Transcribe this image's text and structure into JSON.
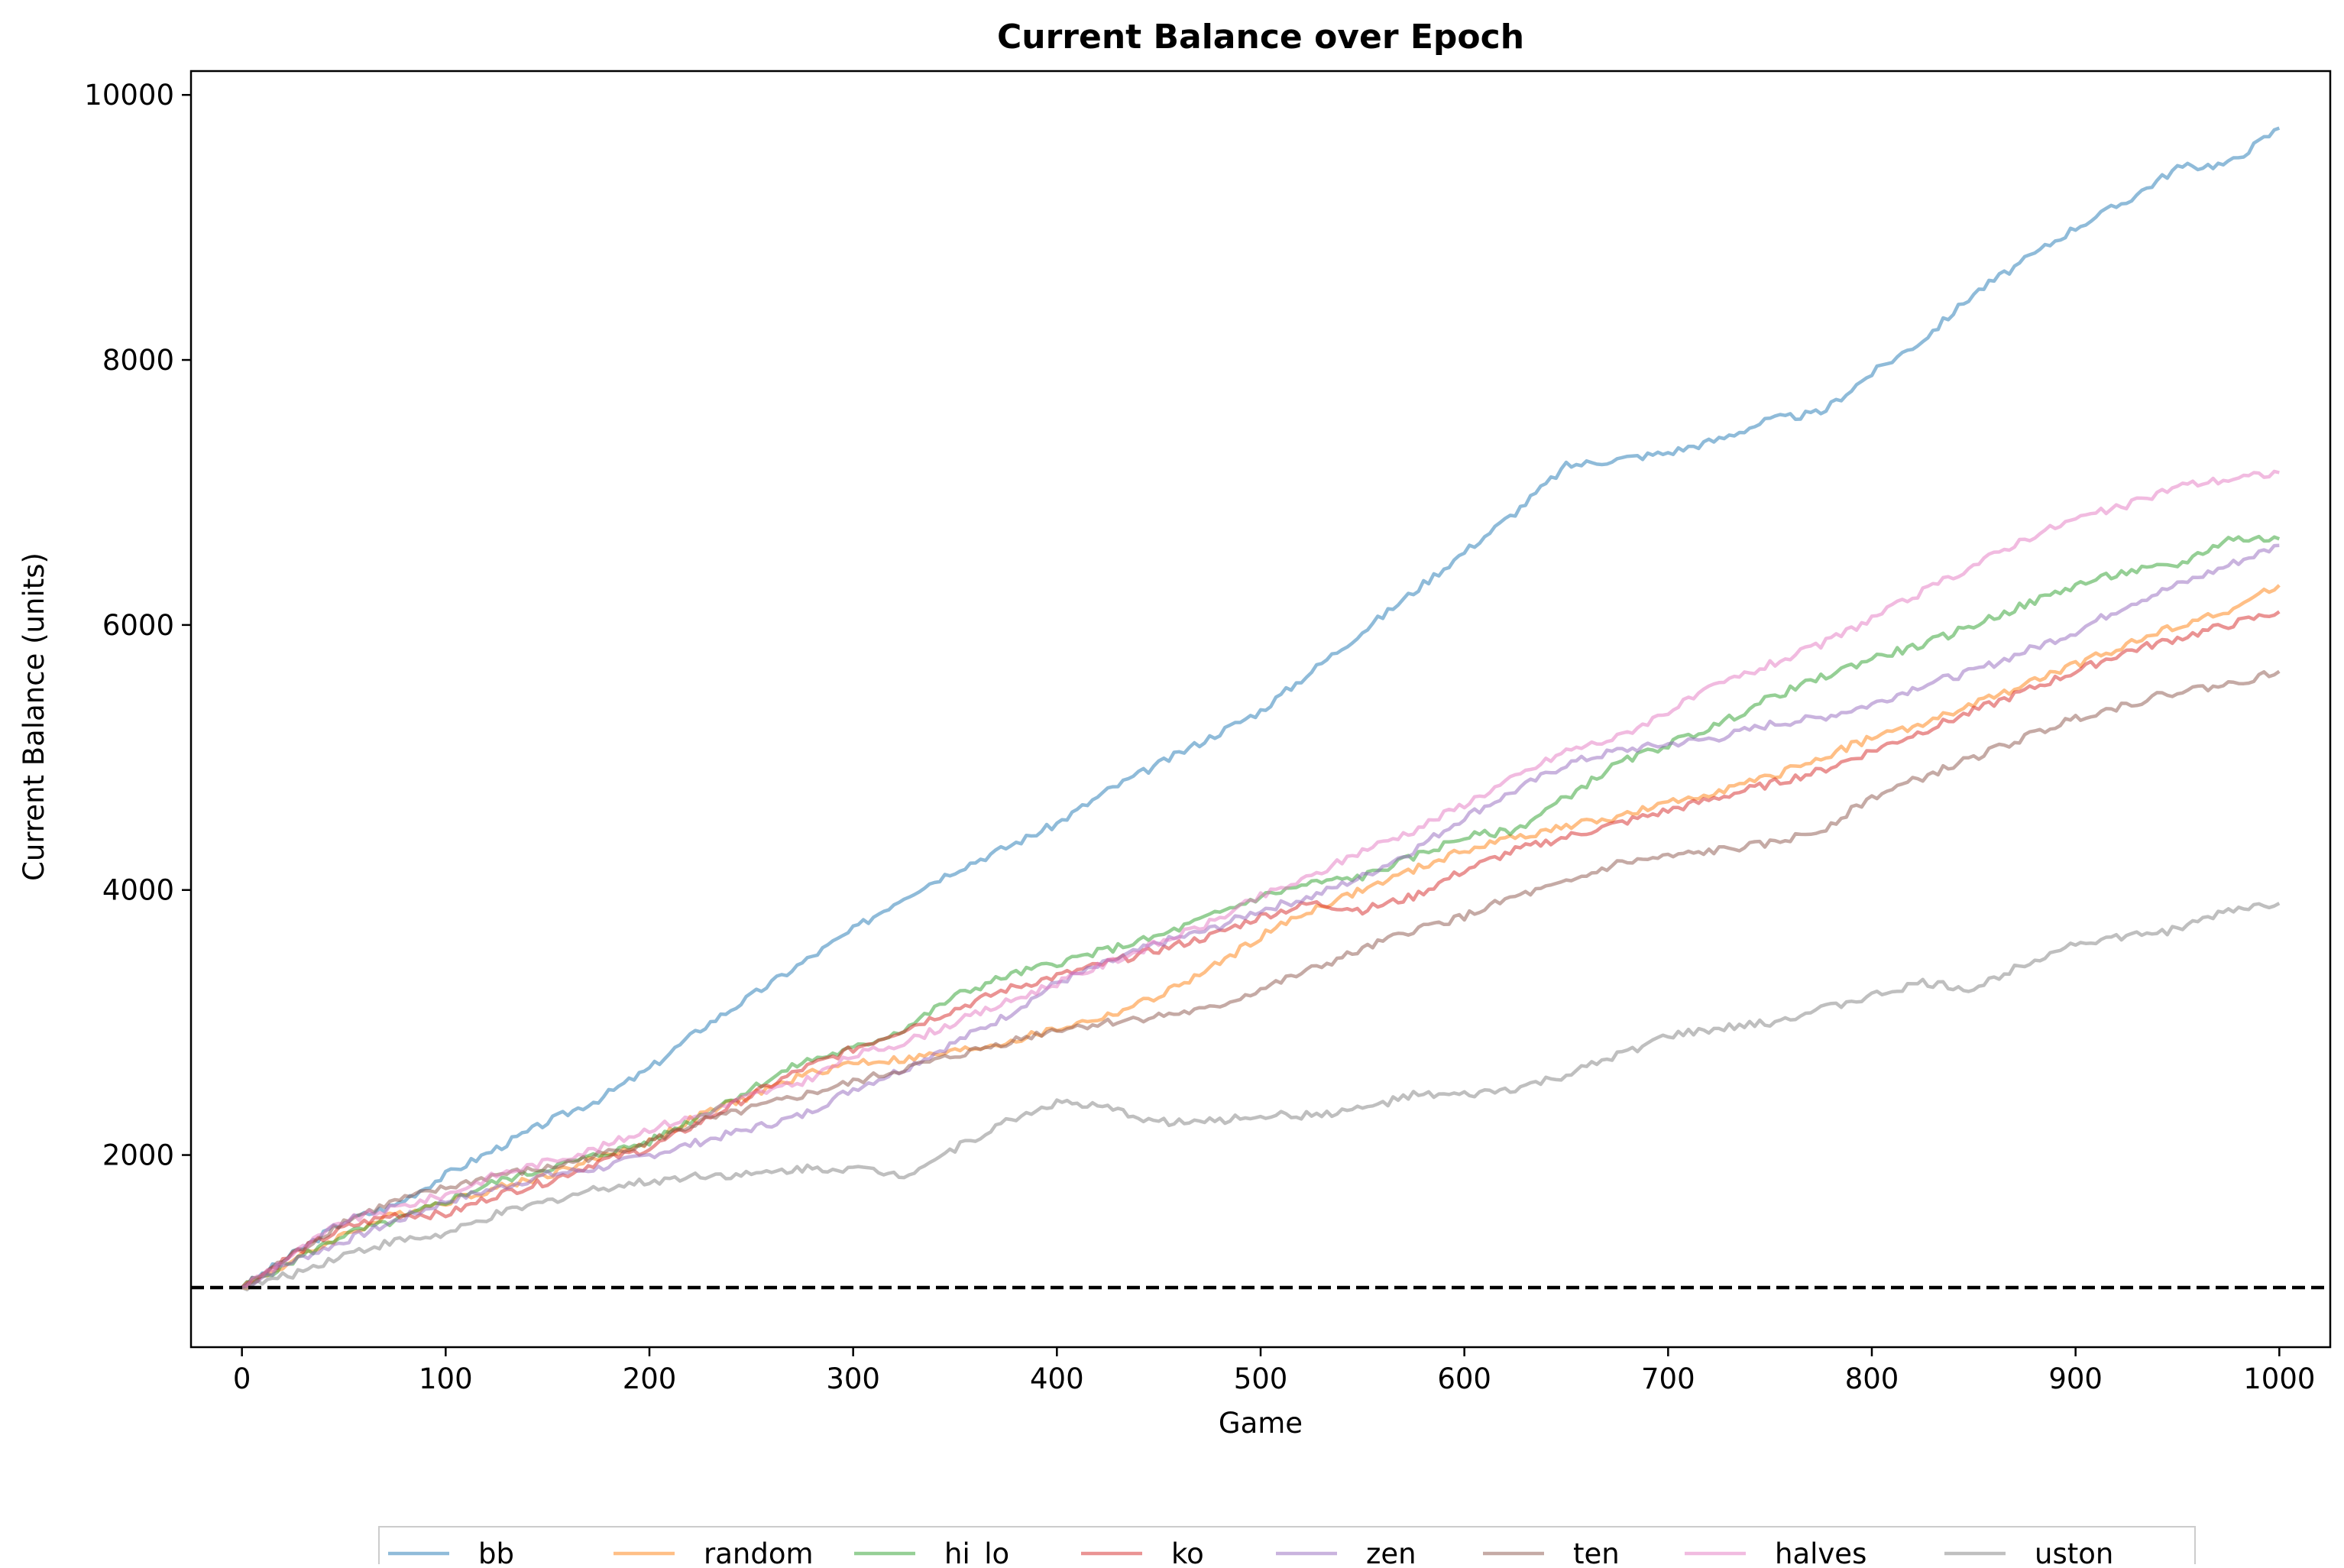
{
  "chart_data": {
    "type": "line",
    "title": "Current Balance over Epoch",
    "xlabel": "Game",
    "ylabel": "Current Balance (units)",
    "xlim": [
      -25,
      1025
    ],
    "ylim": [
      550,
      10180
    ],
    "xticks": [
      0,
      100,
      200,
      300,
      400,
      500,
      600,
      700,
      800,
      900,
      1000
    ],
    "xtick_labels": [
      "0",
      "100",
      "200",
      "300",
      "400",
      "500",
      "600",
      "700",
      "800",
      "900",
      "1000"
    ],
    "yticks": [
      2000,
      4000,
      6000,
      8000,
      10000
    ],
    "ytick_labels": [
      "2000",
      "4000",
      "6000",
      "8000",
      "10000"
    ],
    "grid": false,
    "legend_position": "bottom-center, below axes",
    "reference_line": {
      "y": 1000,
      "style": "dashed",
      "color": "#000000"
    },
    "x": [
      0,
      25,
      50,
      75,
      100,
      125,
      150,
      175,
      200,
      225,
      250,
      275,
      300,
      325,
      350,
      375,
      400,
      425,
      450,
      475,
      500,
      525,
      550,
      575,
      600,
      625,
      650,
      675,
      700,
      725,
      750,
      775,
      800,
      825,
      850,
      875,
      900,
      925,
      950,
      975,
      1000
    ],
    "series": [
      {
        "name": "bb",
        "color": "#1f77b4",
        "values": [
          1000,
          1250,
          1500,
          1620,
          1850,
          2050,
          2250,
          2420,
          2650,
          2950,
          3200,
          3450,
          3700,
          3950,
          4150,
          4320,
          4500,
          4750,
          4950,
          5150,
          5350,
          5650,
          5950,
          6250,
          6550,
          6850,
          7200,
          7250,
          7300,
          7400,
          7550,
          7600,
          7900,
          8150,
          8500,
          8750,
          9000,
          9200,
          9450,
          9480,
          9750
        ]
      },
      {
        "name": "random",
        "color": "#ff7f0e",
        "values": [
          1000,
          1200,
          1400,
          1550,
          1650,
          1750,
          1850,
          1980,
          2100,
          2300,
          2450,
          2600,
          2700,
          2720,
          2780,
          2850,
          2950,
          3050,
          3200,
          3400,
          3650,
          3850,
          4000,
          4150,
          4300,
          4400,
          4480,
          4550,
          4650,
          4750,
          4850,
          5000,
          5150,
          5250,
          5400,
          5550,
          5700,
          5850,
          6000,
          6100,
          6300
        ]
      },
      {
        "name": "hi_lo",
        "color": "#2ca02c",
        "values": [
          1000,
          1200,
          1400,
          1500,
          1650,
          1800,
          1900,
          2000,
          2100,
          2300,
          2500,
          2700,
          2800,
          2950,
          3200,
          3350,
          3450,
          3550,
          3650,
          3800,
          3950,
          4050,
          4100,
          4250,
          4400,
          4450,
          4700,
          4950,
          5100,
          5250,
          5450,
          5600,
          5750,
          5850,
          6000,
          6150,
          6300,
          6400,
          6450,
          6650,
          6650
        ]
      },
      {
        "name": "ko",
        "color": "#d62728",
        "values": [
          1000,
          1250,
          1450,
          1550,
          1550,
          1700,
          1800,
          1950,
          2050,
          2250,
          2450,
          2650,
          2800,
          2950,
          3100,
          3250,
          3350,
          3450,
          3550,
          3650,
          3800,
          3900,
          3850,
          3950,
          4150,
          4300,
          4400,
          4500,
          4600,
          4700,
          4800,
          4900,
          5050,
          5200,
          5350,
          5500,
          5650,
          5800,
          5900,
          6000,
          6100
        ]
      },
      {
        "name": "zen",
        "color": "#9467bd",
        "values": [
          1000,
          1200,
          1350,
          1500,
          1650,
          1750,
          1850,
          1900,
          2000,
          2100,
          2200,
          2300,
          2500,
          2650,
          2850,
          3050,
          3300,
          3450,
          3600,
          3700,
          3850,
          3950,
          4100,
          4300,
          4550,
          4750,
          4950,
          5050,
          5100,
          5150,
          5250,
          5300,
          5400,
          5550,
          5650,
          5800,
          5950,
          6150,
          6300,
          6450,
          6600
        ]
      },
      {
        "name": "ten",
        "color": "#8c564b",
        "values": [
          1000,
          1250,
          1500,
          1650,
          1750,
          1850,
          1900,
          2000,
          2100,
          2250,
          2350,
          2450,
          2550,
          2650,
          2750,
          2850,
          2950,
          3000,
          3050,
          3100,
          3250,
          3400,
          3550,
          3700,
          3800,
          3950,
          4050,
          4200,
          4250,
          4300,
          4350,
          4450,
          4700,
          4850,
          5000,
          5150,
          5300,
          5400,
          5500,
          5550,
          5650
        ]
      },
      {
        "name": "halves",
        "color": "#e377c2",
        "values": [
          1000,
          1250,
          1500,
          1600,
          1700,
          1850,
          1950,
          2050,
          2200,
          2300,
          2450,
          2550,
          2750,
          2850,
          3000,
          3150,
          3300,
          3450,
          3600,
          3750,
          3950,
          4100,
          4300,
          4450,
          4650,
          4850,
          5050,
          5150,
          5350,
          5550,
          5700,
          5850,
          6050,
          6250,
          6450,
          6650,
          6800,
          6900,
          7050,
          7100,
          7150
        ]
      },
      {
        "name": "uston",
        "color": "#7f7f7f",
        "values": [
          1000,
          1100,
          1250,
          1350,
          1400,
          1550,
          1650,
          1750,
          1800,
          1850,
          1850,
          1900,
          1900,
          1850,
          2050,
          2250,
          2400,
          2350,
          2250,
          2250,
          2300,
          2300,
          2350,
          2450,
          2450,
          2500,
          2600,
          2750,
          2900,
          2950,
          3000,
          3100,
          3200,
          3300,
          3250,
          3450,
          3600,
          3650,
          3700,
          3850,
          3900
        ]
      }
    ]
  }
}
